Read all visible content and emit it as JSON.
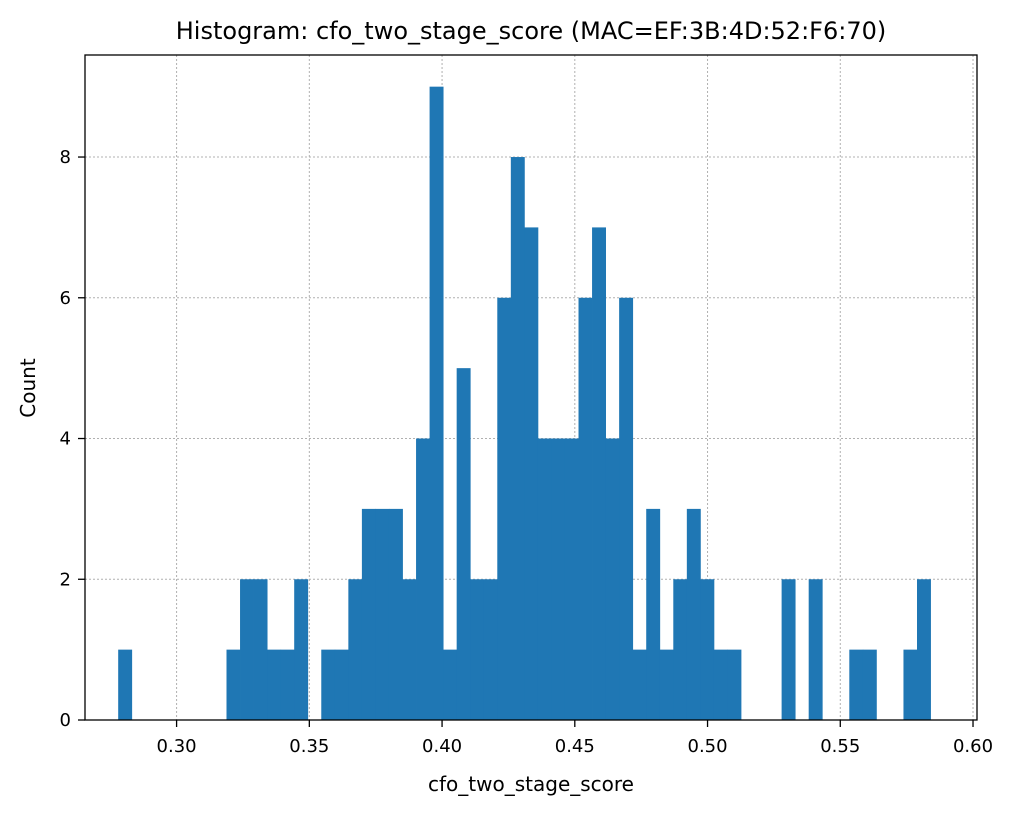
{
  "chart_data": {
    "type": "bar",
    "title": "Histogram: cfo_two_stage_score (MAC=EF:3B:4D:52:F6:70)",
    "xlabel": "cfo_two_stage_score",
    "ylabel": "Count",
    "xlim": [
      0.2655,
      0.6015
    ],
    "ylim": [
      0,
      9.45
    ],
    "xticks": [
      0.3,
      0.35,
      0.4,
      0.45,
      0.5,
      0.55,
      0.6
    ],
    "xtick_labels": [
      "0.30",
      "0.35",
      "0.40",
      "0.45",
      "0.50",
      "0.55",
      "0.60"
    ],
    "yticks": [
      0,
      2,
      4,
      6,
      8
    ],
    "ytick_labels": [
      "0",
      "2",
      "4",
      "6",
      "8"
    ],
    "grid": true,
    "bar_color": "#1f77b4",
    "bin_start": 0.278,
    "bin_width": 0.0051,
    "counts": [
      1,
      0,
      0,
      0,
      0,
      0,
      0,
      0,
      1,
      2,
      2,
      1,
      1,
      2,
      0,
      1,
      1,
      2,
      3,
      3,
      3,
      2,
      4,
      9,
      1,
      5,
      2,
      2,
      6,
      8,
      7,
      4,
      4,
      4,
      6,
      7,
      4,
      6,
      1,
      3,
      1,
      2,
      3,
      2,
      1,
      1,
      0,
      0,
      0,
      2,
      0,
      2,
      0,
      0,
      1,
      1,
      0,
      0,
      1,
      2
    ]
  }
}
